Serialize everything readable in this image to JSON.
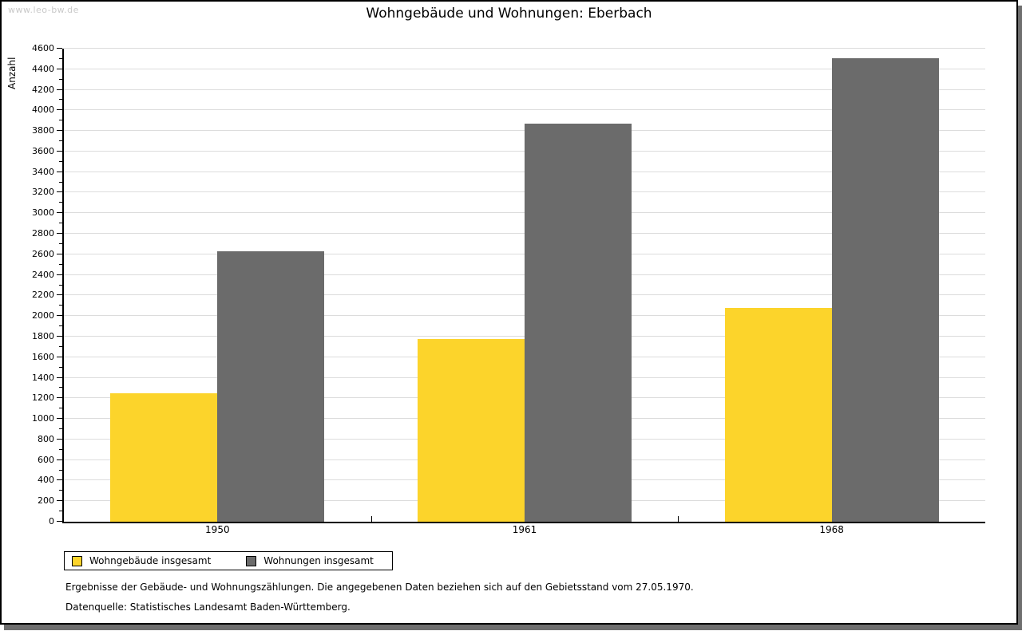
{
  "watermark": "www.leo-bw.de",
  "title": "Wohngebäude und Wohnungen: Eberbach",
  "chart_data": {
    "type": "bar",
    "title": "Wohngebäude und Wohnungen: Eberbach",
    "xlabel": "",
    "ylabel": "Anzahl",
    "categories": [
      "1950",
      "1961",
      "1968"
    ],
    "series": [
      {
        "name": "Wohngebäude insgesamt",
        "color": "#fcd42b",
        "values": [
          1250,
          1775,
          2080
        ]
      },
      {
        "name": "Wohnungen insgesamt",
        "color": "#6b6b6b",
        "values": [
          2630,
          3870,
          4505
        ]
      }
    ],
    "ylim": [
      0,
      4600
    ],
    "ytick_step": 200,
    "minor_tick_step": 100,
    "grid": true,
    "gridline_color": "#dcdcdc",
    "legend_position": "bottom-left"
  },
  "footnotes": [
    "Ergebnisse der Gebäude- und Wohnungszählungen. Die angegebenen Daten beziehen sich auf den Gebietsstand vom 27.05.1970.",
    "Datenquelle: Statistisches Landesamt Baden-Württemberg."
  ]
}
